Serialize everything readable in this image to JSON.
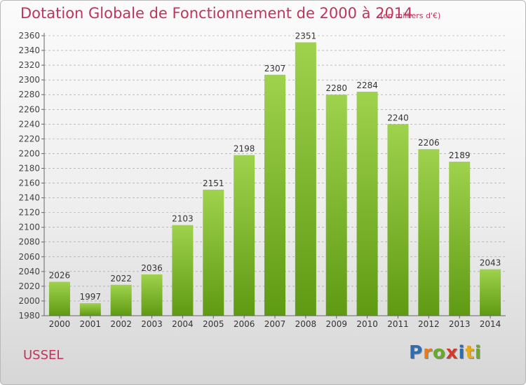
{
  "title": "Dotation Globale de Fonctionnement de 2000 à 2014",
  "subtitle": "(en milliers d'€)",
  "commune": "USSEL",
  "logo": {
    "letters": [
      "P",
      "r",
      "o",
      "x",
      "i",
      "t",
      "i"
    ],
    "colors": [
      "#2f6db3",
      "#e87b1a",
      "#6aaa2a",
      "#d43a2a",
      "#2f6db3",
      "#e8a81a",
      "#6aaa2a"
    ]
  },
  "colors": {
    "accent": "#c0335a",
    "bar_top": "#9fd24d",
    "bar_bottom": "#5f9a13",
    "grid": "#9a9a9a"
  },
  "chart_data": {
    "type": "bar",
    "title": "Dotation Globale de Fonctionnement de 2000 à 2014",
    "subtitle": "(en milliers d'€)",
    "xlabel": "",
    "ylabel": "",
    "categories": [
      "2000",
      "2001",
      "2002",
      "2003",
      "2004",
      "2005",
      "2006",
      "2007",
      "2008",
      "2009",
      "2010",
      "2011",
      "2012",
      "2013",
      "2014"
    ],
    "values": [
      2026,
      1997,
      2022,
      2036,
      2103,
      2151,
      2198,
      2307,
      2351,
      2280,
      2284,
      2240,
      2206,
      2189,
      2043
    ],
    "ylim": [
      1980,
      2360
    ],
    "yticks": [
      1980,
      2000,
      2020,
      2040,
      2060,
      2080,
      2100,
      2120,
      2140,
      2160,
      2180,
      2200,
      2220,
      2240,
      2260,
      2280,
      2300,
      2320,
      2340,
      2360
    ],
    "grid": true
  }
}
